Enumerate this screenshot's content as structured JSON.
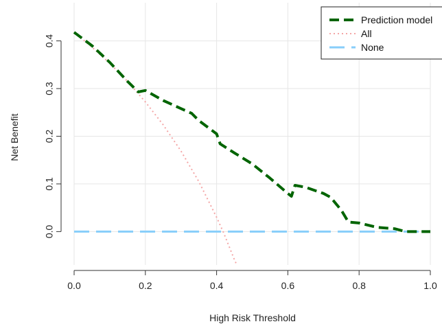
{
  "chart_data": {
    "type": "line",
    "title": "",
    "xlabel": "High Risk Threshold",
    "ylabel": "Net Benefit",
    "xlim": [
      0,
      1
    ],
    "ylim": [
      -0.07,
      0.48
    ],
    "xticks": [
      "0.0",
      "0.2",
      "0.4",
      "0.6",
      "0.8",
      "1.0"
    ],
    "yticks": [
      "0.0",
      "0.1",
      "0.2",
      "0.3",
      "0.4"
    ],
    "grid": true,
    "legend_position": "top-right",
    "series": [
      {
        "name": "Prediction model",
        "color": "#006400",
        "style": "dashed-thick",
        "x": [
          0.0,
          0.05,
          0.1,
          0.15,
          0.18,
          0.2,
          0.25,
          0.3,
          0.33,
          0.35,
          0.4,
          0.41,
          0.45,
          0.5,
          0.55,
          0.6,
          0.61,
          0.62,
          0.65,
          0.7,
          0.72,
          0.75,
          0.77,
          0.8,
          0.85,
          0.9,
          0.93,
          0.95,
          1.0
        ],
        "y": [
          0.418,
          0.39,
          0.355,
          0.315,
          0.293,
          0.296,
          0.275,
          0.258,
          0.248,
          0.233,
          0.205,
          0.184,
          0.165,
          0.142,
          0.112,
          0.08,
          0.074,
          0.097,
          0.093,
          0.08,
          0.072,
          0.045,
          0.02,
          0.018,
          0.009,
          0.006,
          0.0,
          0.0,
          0.0
        ]
      },
      {
        "name": "All",
        "color": "#f4a6a6",
        "style": "dotted",
        "x": [
          0.0,
          0.05,
          0.1,
          0.15,
          0.2,
          0.25,
          0.3,
          0.35,
          0.4,
          0.42,
          0.45,
          0.46
        ],
        "y": [
          0.418,
          0.387,
          0.353,
          0.315,
          0.272,
          0.224,
          0.169,
          0.105,
          0.03,
          -0.003,
          -0.059,
          -0.075
        ]
      },
      {
        "name": "None",
        "color": "#87cefa",
        "style": "dashed",
        "x": [
          0,
          1
        ],
        "y": [
          0,
          0
        ]
      }
    ]
  }
}
